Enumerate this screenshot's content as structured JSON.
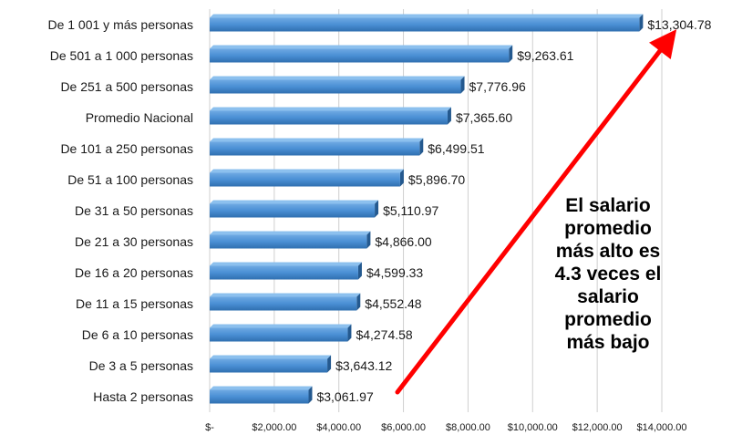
{
  "chart_data": {
    "type": "bar",
    "orientation": "horizontal",
    "categories": [
      "De 1 001 y  más personas",
      "De  501  a 1 000 personas",
      "De  251  a   500  personas",
      "Promedio Nacional",
      "De  101  a   250  personas",
      "De    51  a   100  personas",
      "De    31  a     50  personas",
      "De    21  a     30  personas",
      "De    16  a     20  personas",
      "De    11  a     15  personas",
      "De      6  a     10  personas",
      "De      3  a       5  personas",
      "Hasta 2  personas"
    ],
    "values": [
      13304.78,
      9263.61,
      7776.96,
      7365.6,
      6499.51,
      5896.7,
      5110.97,
      4866.0,
      4599.33,
      4552.48,
      4274.58,
      3643.12,
      3061.97
    ],
    "value_labels": [
      "$13,304.78",
      "$9,263.61",
      "$7,776.96",
      "$7,365.60",
      "$6,499.51",
      "$5,896.70",
      "$5,110.97",
      "$4,866.00",
      "$4,599.33",
      "$4,552.48",
      "$4,274.58",
      "$3,643.12",
      "$3,061.97"
    ],
    "xlim": [
      0,
      14000
    ],
    "x_ticks": [
      0,
      2000,
      4000,
      6000,
      8000,
      10000,
      12000,
      14000
    ],
    "x_tick_labels": [
      "$-",
      "$2,000.00",
      "$4,000.00",
      "$6,000.00",
      "$8,000.00",
      "$10,000.00",
      "$12,000.00",
      "$14,000.00"
    ],
    "grid": "vertical",
    "bar_color": "#4a8fd4",
    "annotation": {
      "lines": [
        "El salario",
        "promedio",
        "más alto es",
        "4.3 veces el",
        "salario",
        "promedio",
        "más bajo"
      ],
      "arrow_color": "#ff0000"
    },
    "title": "",
    "xlabel": "",
    "ylabel": ""
  }
}
